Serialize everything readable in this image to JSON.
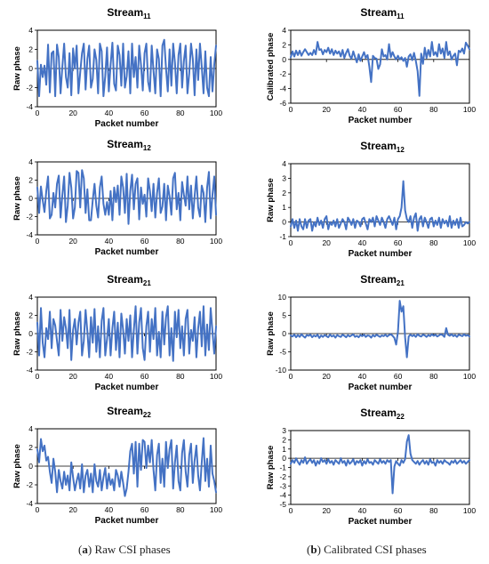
{
  "captions": [
    {
      "letter": "a",
      "text": "Raw CSI phases"
    },
    {
      "letter": "b",
      "text": "Calibrated CSI phases"
    }
  ],
  "style": {
    "line_color": "#4472C4",
    "axis_color": "#000000"
  },
  "chart_data": [
    {
      "type": "line",
      "title": "Stream",
      "title_sub": "11",
      "xlabel": "Packet number",
      "ylabel": "Raw phase",
      "xlim": [
        0,
        100
      ],
      "xticks": [
        0,
        20,
        40,
        60,
        80,
        100
      ],
      "ylim": [
        -4,
        4
      ],
      "yticks": [
        -4,
        -2,
        0,
        2,
        4
      ],
      "series": [
        {
          "values": [
            0.8,
            -2.9,
            0.4,
            -0.9,
            0.3,
            -1.7,
            2.5,
            -2.5,
            1.6,
            1.8,
            -2.9,
            2.5,
            1.2,
            -2.6,
            0.2,
            2.6,
            -0.9,
            -2.0,
            1.6,
            -2.8,
            2.1,
            0.0,
            2.4,
            -2.6,
            -0.4,
            1.6,
            2.6,
            -2.2,
            1.0,
            2.4,
            -2.0,
            -1.1,
            2.0,
            0.9,
            -2.6,
            2.6,
            1.8,
            -2.9,
            -0.8,
            2.2,
            -2.4,
            0.4,
            2.7,
            -1.6,
            -2.3,
            2.4,
            1.4,
            -1.8,
            2.6,
            -2.0,
            -0.8,
            1.8,
            -2.6,
            2.6,
            -0.9,
            1.2,
            -2.0,
            2.4,
            0.4,
            -2.3,
            1.6,
            2.6,
            -1.4,
            -2.4,
            2.4,
            -0.2,
            -2.6,
            2.0,
            1.0,
            -2.9,
            2.4,
            3.0,
            0.0,
            -2.4,
            2.0,
            -1.8,
            2.6,
            0.6,
            -2.6,
            1.4,
            2.6,
            -2.0,
            0.8,
            2.4,
            -2.6,
            -0.5,
            2.6,
            1.0,
            -2.8,
            2.0,
            -1.2,
            2.6,
            0.2,
            -2.6,
            1.8,
            -2.0,
            -2.9,
            1.2,
            -2.4,
            0.4,
            2.4
          ]
        }
      ]
    },
    {
      "type": "line",
      "title": "Stream",
      "title_sub": "11",
      "xlabel": "Packet number",
      "ylabel": "Calibrated phase",
      "xlim": [
        0,
        100
      ],
      "xticks": [
        0,
        20,
        40,
        60,
        80,
        100
      ],
      "ylim": [
        -6,
        4
      ],
      "yticks": [
        -6,
        -4,
        -2,
        0,
        2,
        4
      ],
      "series": [
        {
          "values": [
            0.3,
            1.1,
            0.4,
            1.2,
            0.6,
            1.2,
            0.5,
            1.0,
            1.4,
            1.0,
            0.6,
            0.9,
            0.6,
            1.3,
            0.7,
            2.4,
            1.3,
            1.4,
            0.7,
            1.3,
            1.0,
            1.6,
            0.8,
            1.4,
            0.6,
            1.2,
            0.8,
            1.1,
            0.4,
            1.3,
            0.2,
            0.9,
            1.4,
            0.5,
            0.1,
            1.1,
            0.3,
            -0.4,
            0.7,
            -0.2,
            0.4,
            1.0,
            0.2,
            0.6,
            -1.0,
            -3.1,
            0.5,
            0.2,
            0.1,
            -1.3,
            -0.7,
            1.4,
            0.4,
            0.6,
            0.0,
            2.1,
            0.3,
            1.0,
            0.4,
            0.0,
            0.5,
            0.0,
            0.3,
            -0.2,
            0.2,
            -1.0,
            0.4,
            0.7,
            -0.1,
            0.9,
            -0.2,
            -1.6,
            -5.0,
            0.8,
            -0.6,
            1.6,
            0.2,
            1.3,
            0.4,
            2.4,
            0.6,
            1.0,
            0.4,
            2.1,
            0.8,
            1.5,
            0.2,
            2.4,
            0.6,
            1.1,
            0.0,
            0.5,
            0.8,
            -0.8,
            1.2,
            1.0,
            1.5,
            0.8,
            2.3,
            1.9,
            1.4
          ]
        }
      ]
    },
    {
      "type": "line",
      "title": "Stream",
      "title_sub": "12",
      "xlabel": "Packet number",
      "ylabel": "Raw phase",
      "xlim": [
        0,
        100
      ],
      "xticks": [
        0,
        20,
        40,
        60,
        80,
        100
      ],
      "ylim": [
        -4,
        4
      ],
      "yticks": [
        -4,
        -2,
        0,
        2,
        4
      ],
      "series": [
        {
          "values": [
            1.2,
            -1.6,
            1.3,
            -0.2,
            -1.5,
            0.8,
            2.4,
            -2.2,
            -1.8,
            0.6,
            -1.0,
            1.6,
            2.5,
            -2.1,
            0.4,
            2.4,
            -2.6,
            -0.8,
            2.8,
            1.2,
            -2.2,
            -1.0,
            3.0,
            2.8,
            -1.0,
            3.1,
            2.2,
            -1.6,
            1.0,
            -2.4,
            -2.4,
            -0.2,
            1.6,
            -0.8,
            -2.1,
            1.2,
            2.4,
            -0.6,
            -1.8,
            -0.4,
            -1.8,
            0.8,
            -2.4,
            1.2,
            -0.4,
            1.4,
            -1.8,
            2.4,
            1.2,
            -1.6,
            2.7,
            -2.8,
            0.8,
            2.6,
            -1.2,
            1.6,
            2.2,
            -2.3,
            1.2,
            -0.6,
            0.4,
            -2.0,
            2.2,
            0.8,
            -1.4,
            1.6,
            -2.1,
            0.6,
            2.2,
            -1.6,
            -0.9,
            1.6,
            -2.4,
            1.4,
            0.2,
            -1.8,
            2.2,
            2.8,
            -1.2,
            0.6,
            -2.4,
            1.8,
            0.4,
            -0.8,
            2.4,
            -1.2,
            1.4,
            -2.2,
            0.2,
            2.4,
            -1.0,
            -2.0,
            1.4,
            0.6,
            -2.6,
            1.2,
            2.9,
            -2.2,
            0.4,
            2.4,
            -1.8
          ]
        }
      ]
    },
    {
      "type": "line",
      "title": "Stream",
      "title_sub": "12",
      "xlabel": "Packet number",
      "ylabel": "Raw phase",
      "xlim": [
        0,
        100
      ],
      "xticks": [
        0,
        20,
        40,
        60,
        80,
        100
      ],
      "ylim": [
        -1,
        4
      ],
      "yticks": [
        -1,
        0,
        1,
        2,
        3,
        4
      ],
      "series": [
        {
          "values": [
            -0.3,
            0.2,
            -0.4,
            0.1,
            -0.6,
            0.2,
            -0.3,
            -0.5,
            0.2,
            -0.4,
            0.1,
            0.2,
            -0.6,
            0.0,
            -0.3,
            0.3,
            -0.2,
            0.1,
            -0.4,
            0.2,
            0.4,
            -0.5,
            0.0,
            -0.2,
            0.1,
            -0.3,
            0.2,
            -0.4,
            -0.1,
            0.2,
            0.0,
            -0.5,
            0.3,
            0.1,
            -0.2,
            0.2,
            -0.4,
            0.1,
            0.0,
            -0.3,
            0.2,
            0.3,
            -0.1,
            -0.5,
            0.2,
            0.0,
            0.3,
            -0.3,
            0.4,
            0.1,
            -0.2,
            0.3,
            0.0,
            -0.4,
            0.2,
            0.4,
            0.1,
            -0.2,
            0.3,
            -0.5,
            0.2,
            0.4,
            1.0,
            2.8,
            0.8,
            0.2,
            0.0,
            0.4,
            -0.4,
            0.3,
            0.6,
            -0.6,
            0.2,
            0.4,
            -0.3,
            0.3,
            0.0,
            -0.4,
            0.2,
            0.3,
            -0.3,
            0.1,
            -0.2,
            0.3,
            -0.4,
            0.2,
            -0.1,
            0.1,
            -0.3,
            0.4,
            -0.4,
            0.1,
            -0.2,
            0.2,
            -0.4,
            0.3,
            -0.3,
            -0.2,
            0.0,
            -0.1,
            0.0
          ]
        }
      ]
    },
    {
      "type": "line",
      "title": "Stream",
      "title_sub": "21",
      "xlabel": "Packet number",
      "ylabel": "Raw phase",
      "xlim": [
        0,
        100
      ],
      "xticks": [
        0,
        20,
        40,
        60,
        80,
        100
      ],
      "ylim": [
        -4,
        4
      ],
      "yticks": [
        -4,
        -2,
        0,
        2,
        4
      ],
      "series": [
        {
          "values": [
            1.2,
            -2.4,
            2.8,
            -1.0,
            -2.6,
            0.6,
            -0.6,
            2.4,
            -1.6,
            1.6,
            0.9,
            -0.8,
            -2.4,
            2.6,
            -0.8,
            1.8,
            0.6,
            -1.6,
            2.6,
            -2.9,
            0.4,
            1.6,
            -1.2,
            1.2,
            2.4,
            -2.4,
            -0.8,
            2.6,
            0.2,
            -2.6,
            1.8,
            -1.0,
            2.7,
            -2.0,
            0.8,
            -2.6,
            1.4,
            2.8,
            -2.4,
            -0.6,
            1.6,
            -2.4,
            0.6,
            2.4,
            -1.8,
            1.2,
            -2.6,
            2.2,
            0.4,
            -2.2,
            1.6,
            -0.8,
            2.0,
            -2.6,
            0.4,
            3.0,
            -2.2,
            1.2,
            2.8,
            -1.6,
            -2.9,
            0.8,
            2.4,
            -2.0,
            1.6,
            -0.6,
            2.8,
            -2.4,
            0.2,
            -2.6,
            2.4,
            -1.2,
            1.8,
            3.0,
            -2.4,
            0.6,
            -3.0,
            2.4,
            -0.4,
            2.6,
            -1.6,
            0.8,
            -2.4,
            1.6,
            2.6,
            -2.2,
            0.4,
            -0.8,
            1.8,
            -2.6,
            0.6,
            2.4,
            -1.4,
            3.0,
            -2.4,
            1.0,
            -1.8,
            2.8,
            0.2,
            -2.2,
            0.8
          ]
        }
      ]
    },
    {
      "type": "line",
      "title": "Stream",
      "title_sub": "21",
      "xlabel": "Packet number",
      "ylabel": "Raw phase",
      "xlim": [
        0,
        100
      ],
      "xticks": [
        0,
        20,
        40,
        60,
        80,
        100
      ],
      "ylim": [
        -10,
        10
      ],
      "yticks": [
        -10,
        -5,
        0,
        5,
        10
      ],
      "series": [
        {
          "values": [
            -0.5,
            -0.8,
            -0.3,
            -1.0,
            -0.4,
            -0.9,
            -0.2,
            -0.7,
            -1.1,
            -0.4,
            -0.6,
            -0.3,
            -1.0,
            -0.5,
            -0.8,
            -0.3,
            -1.2,
            -0.5,
            -0.9,
            -0.4,
            -0.7,
            -1.0,
            -0.3,
            -0.8,
            -0.5,
            -1.1,
            -0.4,
            -0.7,
            -0.9,
            -0.3,
            -0.6,
            -1.0,
            -0.4,
            -0.8,
            -0.5,
            -0.2,
            -0.9,
            -0.6,
            -1.0,
            -0.4,
            -0.7,
            -0.3,
            -0.9,
            -0.5,
            -0.6,
            -1.1,
            -0.4,
            -0.8,
            -0.3,
            -0.6,
            -0.9,
            -0.5,
            -0.7,
            -0.3,
            -0.8,
            -0.4,
            -0.2,
            -0.6,
            -1.2,
            -3.0,
            0.5,
            9.0,
            6.0,
            7.5,
            -1.0,
            -6.5,
            -0.8,
            -0.3,
            -0.7,
            -0.4,
            -0.9,
            -0.2,
            -0.6,
            -0.8,
            -0.3,
            -0.5,
            -0.9,
            -0.4,
            -0.7,
            -0.2,
            -0.6,
            -0.3,
            -0.8,
            -0.5,
            -0.2,
            -0.4,
            -0.9,
            1.5,
            -0.3,
            -0.6,
            -0.2,
            -0.7,
            -0.4,
            -0.9,
            -0.3,
            -0.5,
            -0.7,
            -0.2,
            -0.6,
            -0.4,
            -0.8
          ]
        }
      ]
    },
    {
      "type": "line",
      "title": "Stream",
      "title_sub": "22",
      "xlabel": "Packet number",
      "ylabel": "Raw phase",
      "xlim": [
        0,
        100
      ],
      "xticks": [
        0,
        20,
        40,
        60,
        80,
        100
      ],
      "ylim": [
        -4,
        4
      ],
      "yticks": [
        -4,
        -2,
        0,
        2,
        4
      ],
      "series": [
        {
          "values": [
            1.8,
            0.4,
            2.9,
            1.6,
            2.2,
            0.6,
            1.0,
            -0.6,
            -1.8,
            0.8,
            -0.6,
            -2.8,
            -0.4,
            -1.6,
            -2.4,
            -0.6,
            -2.0,
            -1.0,
            -2.6,
            0.4,
            -1.2,
            -2.6,
            -1.6,
            -0.8,
            -2.4,
            0.2,
            -2.8,
            -1.0,
            -0.4,
            -2.2,
            -0.8,
            -2.8,
            0.2,
            -1.6,
            -2.2,
            -0.4,
            -2.6,
            -1.2,
            -0.2,
            -2.4,
            -0.8,
            -2.0,
            -1.4,
            -2.6,
            -0.4,
            -1.0,
            -2.2,
            -0.6,
            -1.8,
            -3.2,
            -2.4,
            -0.6,
            1.6,
            2.4,
            -0.8,
            2.6,
            -2.2,
            2.4,
            -0.4,
            2.8,
            2.6,
            -0.2,
            2.2,
            0.4,
            2.8,
            -0.4,
            -2.6,
            1.2,
            2.4,
            -1.8,
            0.8,
            -2.2,
            2.6,
            -0.2,
            1.8,
            2.8,
            -2.4,
            0.4,
            2.2,
            -1.6,
            -2.6,
            1.4,
            2.8,
            -0.6,
            -2.2,
            1.2,
            2.4,
            -1.8,
            0.6,
            2.2,
            -1.0,
            -2.6,
            0.4,
            3.0,
            -1.6,
            0.8,
            -2.2,
            2.2,
            -0.8,
            -1.6,
            -2.8
          ]
        }
      ]
    },
    {
      "type": "line",
      "title": "Stream",
      "title_sub": "22",
      "xlabel": "Packet number",
      "ylabel": "Raw phase",
      "xlim": [
        0,
        100
      ],
      "xticks": [
        0,
        20,
        40,
        60,
        80,
        100
      ],
      "ylim": [
        -5,
        3
      ],
      "yticks": [
        -5,
        -4,
        -3,
        -2,
        -1,
        0,
        1,
        2,
        3
      ],
      "series": [
        {
          "values": [
            -0.6,
            -0.2,
            -0.5,
            0.0,
            -0.4,
            -0.7,
            -0.2,
            -0.5,
            0.1,
            -0.6,
            -0.3,
            -0.1,
            -0.5,
            -0.2,
            -0.8,
            -0.3,
            -0.6,
            0.0,
            -0.4,
            -0.2,
            -0.6,
            -0.1,
            -0.5,
            -0.3,
            -0.7,
            -0.2,
            -0.4,
            -0.6,
            0.0,
            -0.5,
            -0.3,
            -0.8,
            -0.2,
            -0.6,
            -0.4,
            -0.1,
            -0.7,
            -0.3,
            -0.5,
            -0.2,
            -0.8,
            -0.3,
            -0.6,
            -0.1,
            -0.5,
            -0.4,
            -0.7,
            -0.2,
            -0.4,
            -0.6,
            -0.1,
            -0.5,
            -0.3,
            -0.6,
            -0.2,
            -0.4,
            -0.2,
            -3.8,
            -0.9,
            -0.3,
            -0.6,
            -0.8,
            -0.2,
            -0.5,
            -0.1,
            1.8,
            2.5,
            0.5,
            -0.2,
            -0.4,
            -0.6,
            -0.3,
            -0.7,
            -0.4,
            -0.2,
            -0.6,
            -0.3,
            -0.7,
            -0.1,
            -0.5,
            -0.4,
            -0.8,
            -0.2,
            -0.5,
            -0.3,
            -0.6,
            -0.2,
            -0.4,
            -0.5,
            -0.7,
            -0.3,
            -0.5,
            -0.2,
            -0.6,
            -0.4,
            -0.2,
            -0.5,
            -0.3,
            -0.6,
            -0.4,
            -0.2
          ]
        }
      ]
    }
  ]
}
